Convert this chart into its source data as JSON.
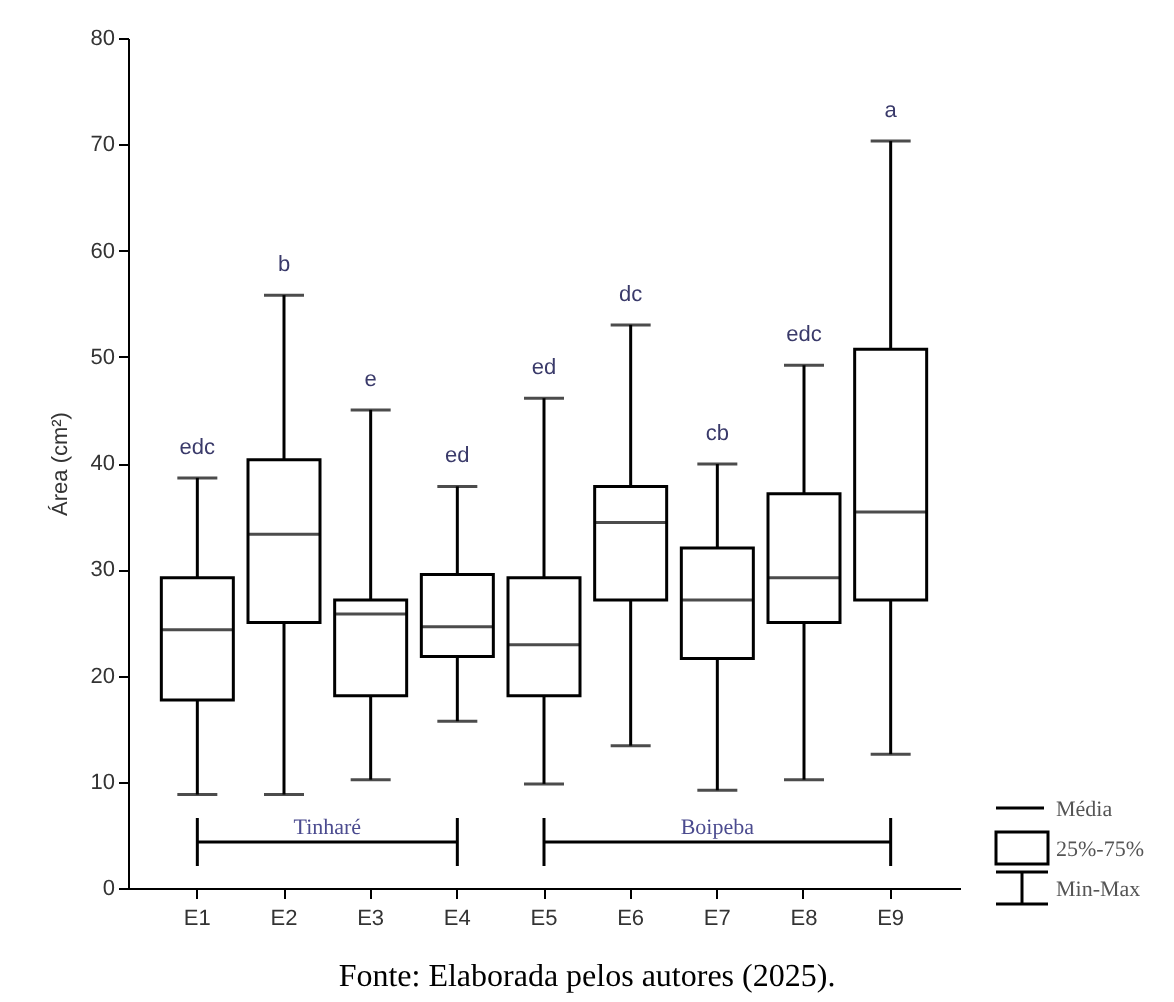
{
  "chart_data": {
    "type": "box",
    "ylabel": "Área (cm²)",
    "categories": [
      "E1",
      "E2",
      "E3",
      "E4",
      "E5",
      "E6",
      "E7",
      "E8",
      "E9"
    ],
    "boxes": [
      {
        "low": 8.8,
        "q1": 17.7,
        "median": 24.3,
        "q3": 29.2,
        "high": 38.6
      },
      {
        "low": 8.8,
        "q1": 25.0,
        "median": 33.3,
        "q3": 40.3,
        "high": 55.8
      },
      {
        "low": 10.2,
        "q1": 18.1,
        "median": 25.8,
        "q3": 27.1,
        "high": 45.0
      },
      {
        "low": 15.7,
        "q1": 21.8,
        "median": 24.6,
        "q3": 29.5,
        "high": 37.8
      },
      {
        "low": 9.8,
        "q1": 18.1,
        "median": 22.9,
        "q3": 29.2,
        "high": 46.1
      },
      {
        "low": 13.4,
        "q1": 27.1,
        "median": 34.4,
        "q3": 37.8,
        "high": 53.0
      },
      {
        "low": 9.2,
        "q1": 21.6,
        "median": 27.1,
        "q3": 32.0,
        "high": 39.9
      },
      {
        "low": 10.2,
        "q1": 25.0,
        "median": 29.2,
        "q3": 37.1,
        "high": 49.2
      },
      {
        "low": 12.6,
        "q1": 27.1,
        "median": 35.4,
        "q3": 50.7,
        "high": 70.3
      }
    ],
    "ylim": [
      0,
      80
    ],
    "yticks": [
      0,
      10,
      20,
      30,
      40,
      50,
      60,
      70,
      80
    ],
    "grid": false,
    "annotations": [
      {
        "text": "edc",
        "x": "E1",
        "y": 38.6
      },
      {
        "text": "b",
        "x": "E2",
        "y": 55.8
      },
      {
        "text": "e",
        "x": "E3",
        "y": 45.0
      },
      {
        "text": "ed",
        "x": "E4",
        "y": 37.8
      },
      {
        "text": "ed",
        "x": "E5",
        "y": 46.1
      },
      {
        "text": "dc",
        "x": "E6",
        "y": 53.0
      },
      {
        "text": "cb",
        "x": "E7",
        "y": 39.9
      },
      {
        "text": "edc",
        "x": "E8",
        "y": 49.2
      },
      {
        "text": "a",
        "x": "E9",
        "y": 70.3
      },
      "Tinharé",
      "Boipeba",
      "Média",
      "25%-75%",
      "Min-Max",
      "Fonte: Elaborada pelos autores (2025)."
    ]
  }
}
